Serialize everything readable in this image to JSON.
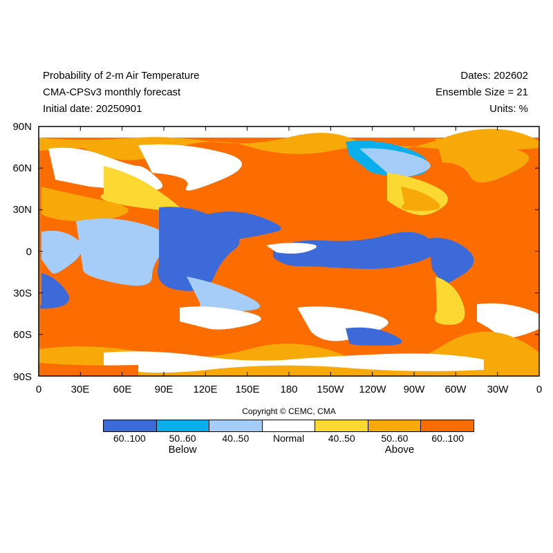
{
  "header": {
    "title": "Probability of 2-m Air Temperature",
    "model": "CMA-CPSv3 monthly forecast",
    "initial": "Initial date: 20250901",
    "dates": "Dates: 202602",
    "ensemble": "Ensemble Size = 21",
    "units": "Units: %"
  },
  "axes": {
    "lat_labels": [
      "90N",
      "60N",
      "30N",
      "0",
      "30S",
      "60S",
      "90S"
    ],
    "lon_labels": [
      "0",
      "30E",
      "60E",
      "90E",
      "120E",
      "150E",
      "180",
      "150W",
      "120W",
      "90W",
      "60W",
      "30W",
      "0"
    ]
  },
  "copyright": "Copyright © CEMC, CMA",
  "legend": {
    "bins": [
      {
        "label": "60..100",
        "color": "#3d6ad9"
      },
      {
        "label": "50..60",
        "color": "#0aaeea"
      },
      {
        "label": "40..50",
        "color": "#a6ccf8"
      },
      {
        "label": "Normal",
        "color": "#ffffff"
      },
      {
        "label": "40..50",
        "color": "#fcd832"
      },
      {
        "label": "50..60",
        "color": "#f8a90a"
      },
      {
        "label": "60..100",
        "color": "#fb6d00"
      }
    ],
    "below_label": "Below",
    "above_label": "Above"
  }
}
